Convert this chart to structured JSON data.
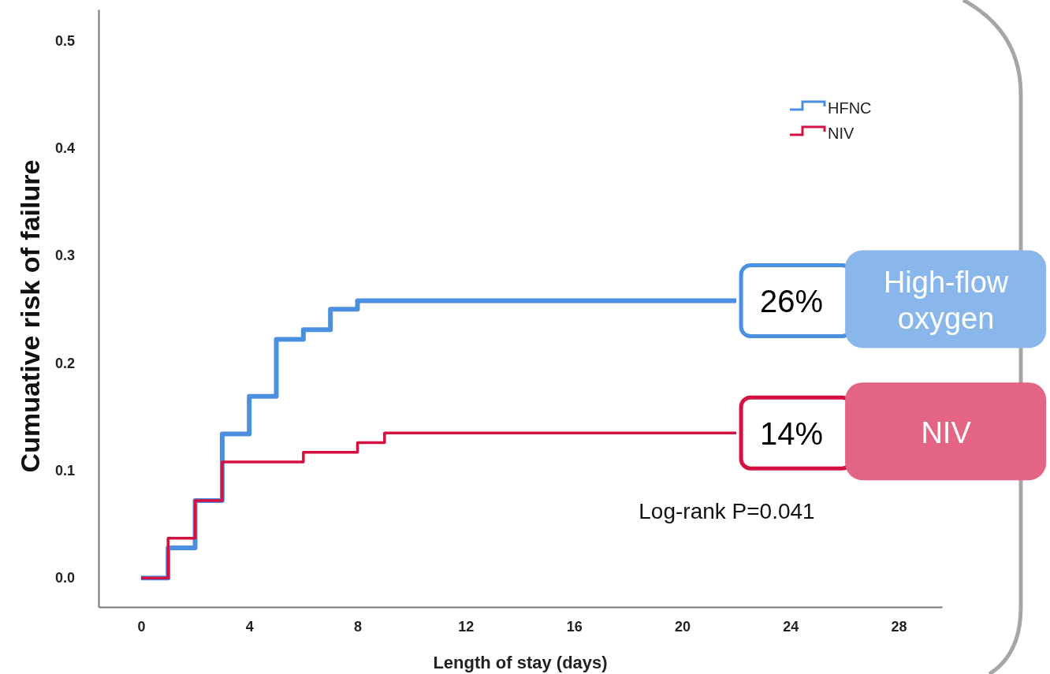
{
  "chart_data": {
    "type": "step",
    "xlabel": "Length of stay (days)",
    "ylabel": "Cumuative risk of failure",
    "series": [
      {
        "name": "HFNC",
        "color": "#4a8fe0",
        "x": [
          0,
          1,
          2,
          3,
          4,
          5,
          6,
          7,
          8,
          22
        ],
        "values": [
          0,
          0.028,
          0.072,
          0.134,
          0.169,
          0.222,
          0.231,
          0.25,
          0.258,
          0.258
        ]
      },
      {
        "name": "NIV",
        "color": "#d41140",
        "x": [
          0,
          1,
          2,
          3,
          6,
          8,
          9,
          22
        ],
        "values": [
          0,
          0.037,
          0.072,
          0.108,
          0.117,
          0.126,
          0.135,
          0.135
        ]
      }
    ],
    "xlim": [
      -1.57,
      29.6
    ],
    "ylim": [
      -0.027,
      0.529
    ],
    "xticks": [
      0,
      4,
      8,
      12,
      16,
      20,
      24,
      28
    ],
    "yticks": [
      {
        "value": 0,
        "label": "0.0"
      },
      0.1,
      0.2,
      0.3,
      0.4,
      0.5
    ],
    "legend": "top right",
    "grid": false,
    "line_style": "solid",
    "marker": "none",
    "annotations": [
      {
        "text": "26%",
        "x": 22,
        "y": 0.258
      },
      {
        "text": "14%",
        "x": 22,
        "y": 0.135
      },
      "High-flow oxygen",
      "NIV",
      "Log-rank P=0.041"
    ]
  }
}
